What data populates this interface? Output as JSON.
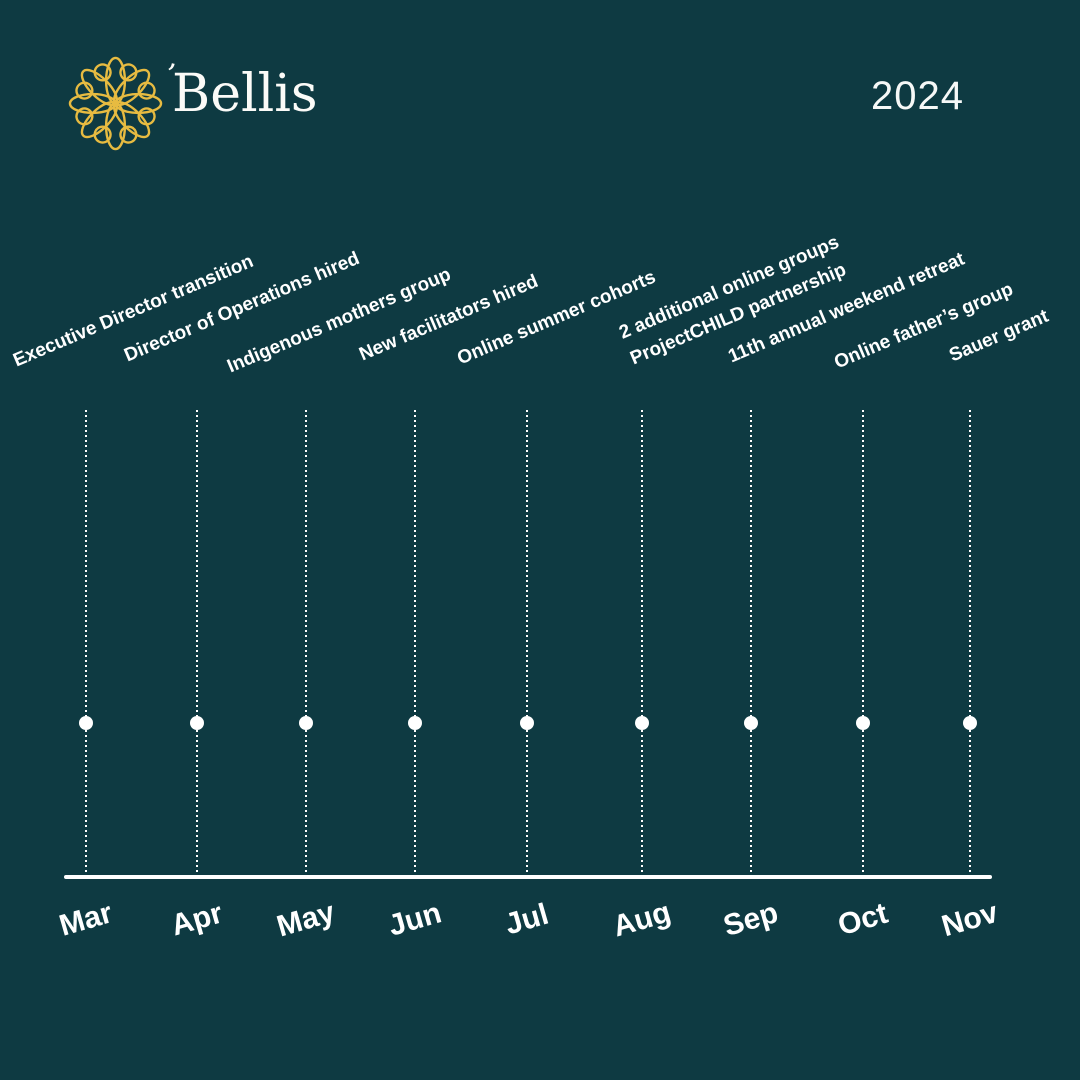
{
  "colors": {
    "background": "#0e3a42",
    "text": "#ffffff",
    "accent_gold": "#e7bb41"
  },
  "brand": {
    "name": "Bellis",
    "wordmark_tick": "’",
    "logo_icon": "flower-spirograph"
  },
  "year": "2024",
  "timeline": {
    "entries": [
      {
        "month": "Mar",
        "events": [
          "Executive Director transition"
        ]
      },
      {
        "month": "Apr",
        "events": [
          "Director of Operations hired"
        ]
      },
      {
        "month": "May",
        "events": [
          "Indigenous mothers group"
        ]
      },
      {
        "month": "Jun",
        "events": [
          "New facilitators hired"
        ]
      },
      {
        "month": "Jul",
        "events": [
          "Online summer cohorts"
        ]
      },
      {
        "month": "Aug",
        "events": [
          "2 additional online groups",
          "ProjectCHILD partnership"
        ]
      },
      {
        "month": "Sep",
        "events": [
          "11th annual weekend retreat"
        ]
      },
      {
        "month": "Oct",
        "events": [
          "Online father’s group"
        ]
      },
      {
        "month": "Nov",
        "events": [
          "Sauer grant"
        ]
      }
    ]
  }
}
